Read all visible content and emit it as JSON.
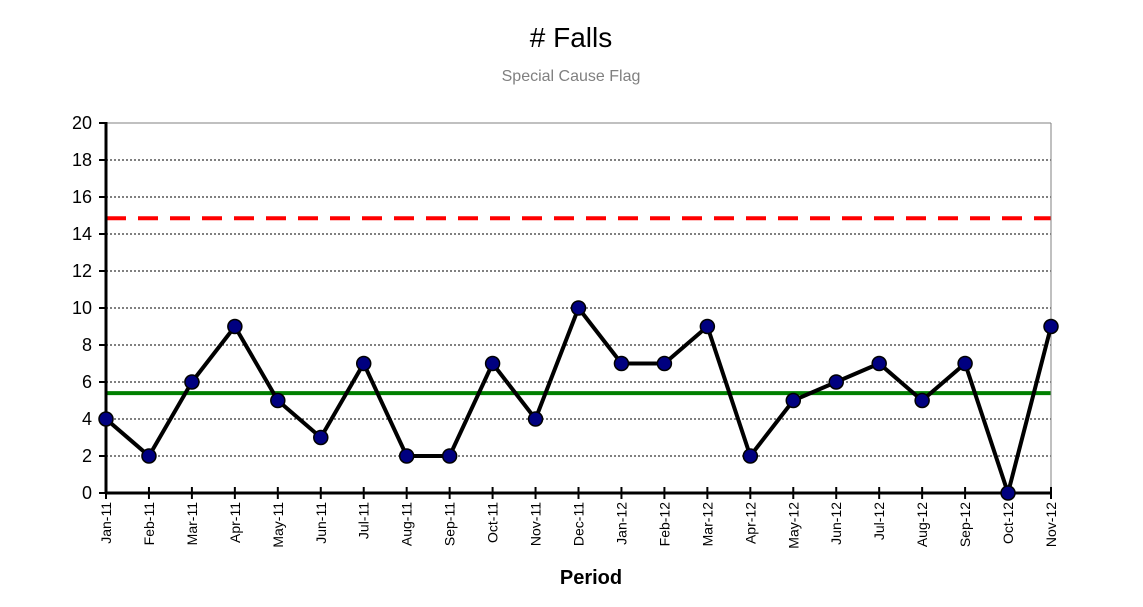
{
  "chart_data": {
    "type": "line",
    "title": "# Falls",
    "subtitle": "Special Cause Flag",
    "xlabel": "Period",
    "ylabel": "",
    "ylim": [
      0,
      20
    ],
    "yticks": [
      "0",
      "2",
      "4",
      "6",
      "8",
      "10",
      "12",
      "14",
      "16",
      "18",
      "20"
    ],
    "grid": true,
    "categories": [
      "Jan-11",
      "Feb-11",
      "Mar-11",
      "Apr-11",
      "May-11",
      "Jun-11",
      "Jul-11",
      "Aug-11",
      "Sep-11",
      "Oct-11",
      "Nov-11",
      "Dec-11",
      "Jan-12",
      "Feb-12",
      "Mar-12",
      "Apr-12",
      "May-12",
      "Jun-12",
      "Jul-12",
      "Aug-12",
      "Sep-12",
      "Oct-12",
      "Nov-12"
    ],
    "series": [
      {
        "values": [
          4,
          2,
          6,
          9,
          5,
          3,
          7,
          2,
          2,
          7,
          4,
          10,
          7,
          7,
          9,
          2,
          5,
          6,
          7,
          5,
          7,
          0,
          9
        ],
        "color": "#000000",
        "marker_color": "#000080"
      }
    ],
    "reference_lines": [
      {
        "kind": "mean",
        "value": 5.4,
        "color": "#008000",
        "style": "solid"
      },
      {
        "kind": "upper-limit",
        "value": 14.85,
        "color": "#ff0000",
        "style": "dashed"
      }
    ]
  }
}
